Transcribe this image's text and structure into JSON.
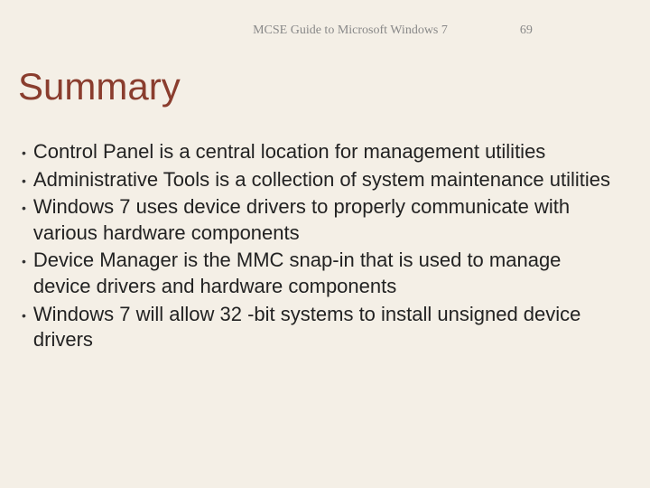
{
  "header": {
    "title": "MCSE Guide to Microsoft Windows 7",
    "page": "69"
  },
  "slide": {
    "title": "Summary",
    "title_color": "#8a3d2e",
    "title_fontsize": 42,
    "background_color": "#f4efe6",
    "text_color": "#222",
    "bullet_fontsize": 22,
    "bullets": [
      "Control Panel is a central location for management utilities",
      "Administrative Tools is a collection of system maintenance utilities",
      "Windows 7 uses device drivers to properly communicate with various hardware components",
      "Device Manager is the MMC snap-in that is used to manage device drivers and hardware components",
      "Windows 7 will allow 32 -bit systems to install unsigned device drivers"
    ]
  }
}
